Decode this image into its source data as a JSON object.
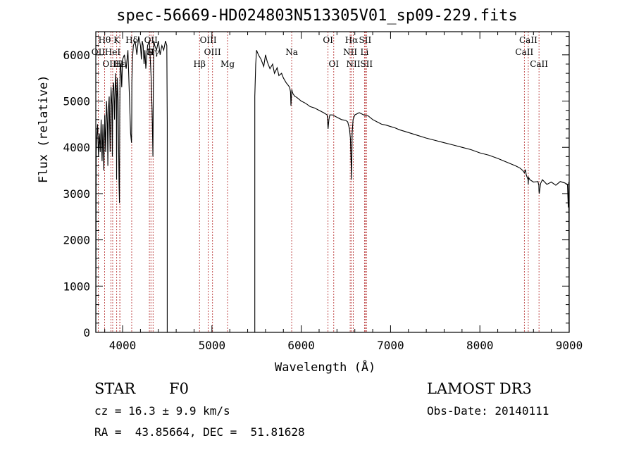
{
  "chart_data": {
    "type": "line",
    "title": "spec-56669-HD024803N513305V01_sp09-229.fits",
    "xlabel": "Wavelength (Å)",
    "ylabel": "Flux (relative)",
    "xlim": [
      3700,
      9000
    ],
    "ylim": [
      0,
      6500
    ],
    "xticks": [
      4000,
      5000,
      6000,
      7000,
      8000,
      9000
    ],
    "yticks": [
      0,
      1000,
      2000,
      3000,
      4000,
      5000,
      6000
    ],
    "spectrum": {
      "x": [
        3700,
        3705,
        3710,
        3720,
        3730,
        3740,
        3750,
        3760,
        3770,
        3780,
        3790,
        3800,
        3810,
        3820,
        3830,
        3835,
        3840,
        3850,
        3860,
        3870,
        3880,
        3885,
        3890,
        3900,
        3910,
        3920,
        3930,
        3933,
        3936,
        3940,
        3950,
        3960,
        3965,
        3968,
        3972,
        3980,
        3990,
        4000,
        4020,
        4040,
        4060,
        4075,
        4090,
        4100,
        4102,
        4104,
        4110,
        4120,
        4140,
        4160,
        4180,
        4200,
        4210,
        4220,
        4230,
        4240,
        4250,
        4260,
        4280,
        4300,
        4320,
        4330,
        4340,
        4342,
        4345,
        4350,
        4360,
        4380,
        4400,
        4420,
        4440,
        4460,
        4480,
        4495,
        4500,
        4500,
        5480,
        5480,
        5490,
        5500,
        5520,
        5550,
        5580,
        5600,
        5620,
        5650,
        5680,
        5700,
        5730,
        5750,
        5780,
        5800,
        5830,
        5850,
        5870,
        5880,
        5885,
        5890,
        5895,
        5900,
        5910,
        5930,
        5950,
        6000,
        6050,
        6100,
        6150,
        6200,
        6250,
        6290,
        6300,
        6310,
        6320,
        6350,
        6400,
        6450,
        6500,
        6520,
        6540,
        6550,
        6560,
        6563,
        6566,
        6570,
        6580,
        6600,
        6650,
        6700,
        6750,
        6800,
        6850,
        6900,
        6950,
        7000,
        7050,
        7100,
        7200,
        7300,
        7400,
        7500,
        7600,
        7700,
        7800,
        7900,
        8000,
        8100,
        8200,
        8300,
        8400,
        8450,
        8480,
        8498,
        8510,
        8520,
        8540,
        8542,
        8545,
        8560,
        8600,
        8650,
        8660,
        8662,
        8665,
        8680,
        8700,
        8750,
        8800,
        8850,
        8900,
        8950,
        8980,
        8990,
        8995,
        9000,
        9000
      ],
      "y": [
        0,
        3900,
        4200,
        4500,
        3800,
        4300,
        3900,
        4600,
        3700,
        4500,
        3500,
        4700,
        3900,
        5000,
        4500,
        3600,
        4800,
        5100,
        3900,
        5300,
        4900,
        3800,
        5200,
        5400,
        4600,
        5600,
        5100,
        3300,
        4600,
        5500,
        5000,
        3200,
        2800,
        4700,
        5700,
        5800,
        5300,
        5900,
        6000,
        5700,
        6100,
        5200,
        4300,
        4100,
        4600,
        5400,
        5900,
        6200,
        6300,
        6000,
        6400,
        6200,
        5900,
        6300,
        6200,
        5800,
        6100,
        5700,
        6200,
        6300,
        5500,
        4800,
        3800,
        4600,
        5600,
        6300,
        6200,
        6100,
        6300,
        6000,
        6200,
        6100,
        6300,
        6200,
        4600,
        0,
        0,
        5100,
        5800,
        6100,
        6000,
        5900,
        5750,
        6000,
        5850,
        5700,
        5800,
        5600,
        5720,
        5550,
        5600,
        5500,
        5400,
        5350,
        5300,
        5200,
        4900,
        5100,
        5250,
        5200,
        5150,
        5100,
        5080,
        5000,
        4950,
        4880,
        4850,
        4800,
        4750,
        4700,
        4400,
        4600,
        4700,
        4700,
        4650,
        4600,
        4580,
        4550,
        4400,
        4200,
        3600,
        3300,
        3700,
        4300,
        4600,
        4700,
        4750,
        4700,
        4680,
        4600,
        4550,
        4500,
        4480,
        4450,
        4420,
        4380,
        4320,
        4260,
        4200,
        4150,
        4100,
        4050,
        4000,
        3950,
        3880,
        3830,
        3760,
        3680,
        3600,
        3550,
        3500,
        3450,
        3520,
        3400,
        3300,
        3200,
        3350,
        3300,
        3250,
        3260,
        3180,
        3050,
        3000,
        3220,
        3300,
        3200,
        3250,
        3180,
        3260,
        3230,
        3200,
        2700,
        3250,
        0,
        0
      ]
    },
    "lines_top": [
      {
        "label": "Hθ",
        "x": 3798
      },
      {
        "label": "K",
        "x": 3934
      },
      {
        "label": "Hδ",
        "x": 4102
      },
      {
        "label": "OII",
        "x": 4317
      },
      {
        "label": "OIII",
        "x": 4959
      },
      {
        "label": "OI",
        "x": 6300
      },
      {
        "label": "Hα",
        "x": 6563
      },
      {
        "label": "SII",
        "x": 6716
      },
      {
        "label": "CaII",
        "x": 8542
      }
    ],
    "lines_mid": [
      {
        "label": "OII",
        "x": 3727
      },
      {
        "label": "HeI",
        "x": 3889
      },
      {
        "label": "G",
        "x": 4300
      },
      {
        "label": "Hγ",
        "x": 4341
      },
      {
        "label": "OIII",
        "x": 5007
      },
      {
        "label": "Na",
        "x": 5893
      },
      {
        "label": "NII",
        "x": 6548
      },
      {
        "label": "Li",
        "x": 6708
      },
      {
        "label": "CaII",
        "x": 8498
      }
    ],
    "lines_bottom": [
      {
        "label": "OIII",
        "x": 3869
      },
      {
        "label": "Hε",
        "x": 3970
      },
      {
        "label": "H",
        "x": 3969
      },
      {
        "label": "Hβ",
        "x": 4861
      },
      {
        "label": "Mg",
        "x": 5175
      },
      {
        "label": "OI",
        "x": 6364
      },
      {
        "label": "NII",
        "x": 6583
      },
      {
        "label": "SII",
        "x": 6731
      },
      {
        "label": "CaII",
        "x": 8662
      }
    ]
  },
  "info": {
    "object_class": "STAR",
    "subclass": "F0",
    "survey": "LAMOST DR3",
    "cz": "cz = 16.3 ± 9.9 km/s",
    "obs_date": "Obs-Date: 20140111",
    "coords": "RA =  43.85664, DEC =  51.81628"
  },
  "colors": {
    "axis": "#000000",
    "spectrum": "#000000",
    "line_marker": "#b22222"
  }
}
